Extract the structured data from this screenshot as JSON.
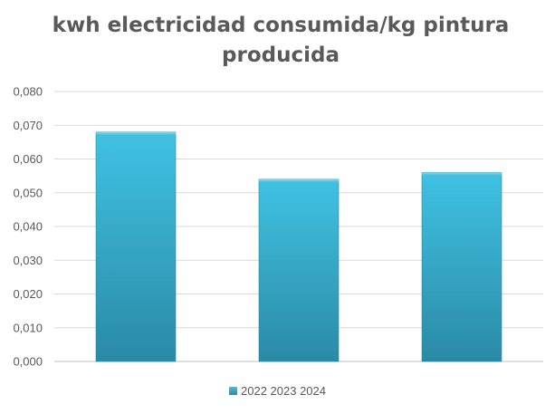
{
  "chart_data": {
    "type": "bar",
    "title": "kwh electricidad consumida/kg pintura producida",
    "categories": [
      "",
      "",
      ""
    ],
    "values": [
      0.068,
      0.054,
      0.056
    ],
    "ylim": [
      0,
      0.08
    ],
    "ytick_step": 0.01,
    "ytick_labels": [
      "0,000",
      "0,010",
      "0,020",
      "0,030",
      "0,040",
      "0,050",
      "0,060",
      "0,070",
      "0,080"
    ],
    "xlabel": "",
    "ylabel": "",
    "grid": true,
    "legend_placement": "bottom",
    "series": [
      {
        "name": "2022 2023 2024",
        "values": [
          0.068,
          0.054,
          0.056
        ]
      }
    ],
    "colors": {
      "bar_top": "#40c2e3",
      "bar_bottom": "#2a8aa6",
      "grid": "#d9d9d9",
      "text": "#595959"
    }
  }
}
